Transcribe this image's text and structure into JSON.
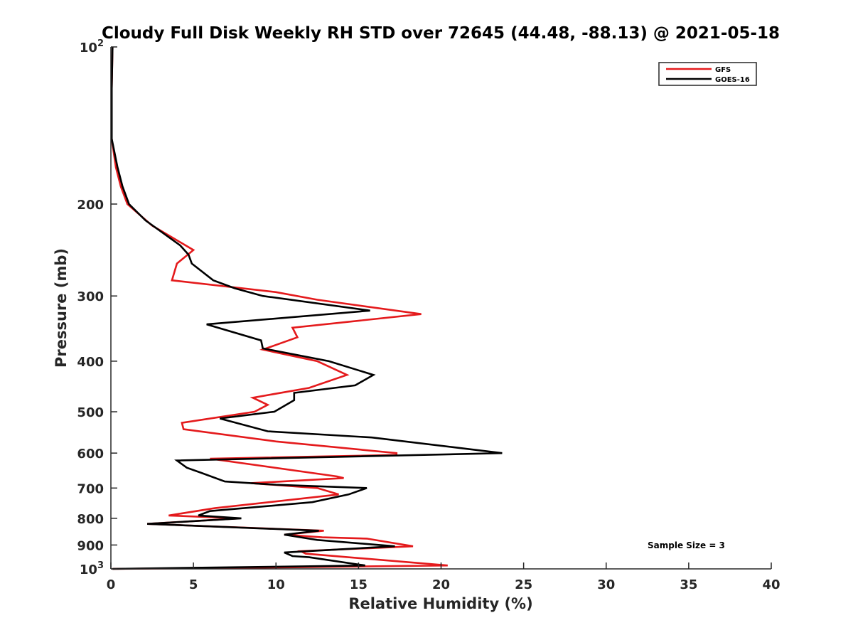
{
  "chart_data": {
    "type": "line",
    "title": "Cloudy Full Disk Weekly RH STD over 72645 (44.48, -88.13) @ 2021-05-18",
    "xlabel": "Relative Humidity (%)",
    "ylabel": "Pressure (mb)",
    "xlim": [
      0,
      40
    ],
    "ylim": [
      100,
      1000
    ],
    "y_scale": "log",
    "y_reversed": true,
    "x_ticks": [
      "0",
      "5",
      "10",
      "15",
      "20",
      "25",
      "30",
      "35",
      "40"
    ],
    "y_ticks": [
      {
        "value": 100,
        "base": "10",
        "exp": "2"
      },
      {
        "value": 200,
        "label": "200"
      },
      {
        "value": 300,
        "label": "300"
      },
      {
        "value": 400,
        "label": "400"
      },
      {
        "value": 500,
        "label": "500"
      },
      {
        "value": 600,
        "label": "600"
      },
      {
        "value": 700,
        "label": "700"
      },
      {
        "value": 800,
        "label": "800"
      },
      {
        "value": 900,
        "label": "900"
      },
      {
        "value": 1000,
        "base": "10",
        "exp": "3"
      }
    ],
    "legend_position": "top-right",
    "grid": false,
    "annotation": "Sample Size = 3",
    "series": [
      {
        "name": "GFS",
        "color": "#e41a1c",
        "points": [
          [
            0.1,
            100
          ],
          [
            0.05,
            120
          ],
          [
            0.05,
            150
          ],
          [
            0.3,
            170
          ],
          [
            0.6,
            185
          ],
          [
            1.0,
            200
          ],
          [
            2.5,
            220
          ],
          [
            5.0,
            245
          ],
          [
            4.0,
            260
          ],
          [
            3.7,
            280
          ],
          [
            10.0,
            295
          ],
          [
            12.5,
            305
          ],
          [
            18.8,
            325
          ],
          [
            11.0,
            345
          ],
          [
            11.3,
            360
          ],
          [
            9.2,
            380
          ],
          [
            12.5,
            400
          ],
          [
            14.3,
            425
          ],
          [
            12.0,
            450
          ],
          [
            8.6,
            470
          ],
          [
            9.5,
            485
          ],
          [
            8.7,
            500
          ],
          [
            4.3,
            525
          ],
          [
            4.4,
            540
          ],
          [
            10.0,
            570
          ],
          [
            17.3,
            600
          ],
          [
            17.3,
            605
          ],
          [
            6.0,
            615
          ],
          [
            13.7,
            665
          ],
          [
            14.1,
            670
          ],
          [
            8.5,
            685
          ],
          [
            12.5,
            700
          ],
          [
            13.8,
            720
          ],
          [
            6.3,
            765
          ],
          [
            3.5,
            790
          ],
          [
            7.8,
            800
          ],
          [
            2.2,
            820
          ],
          [
            12.9,
            845
          ],
          [
            10.5,
            860
          ],
          [
            12.8,
            870
          ],
          [
            15.5,
            875
          ],
          [
            18.3,
            905
          ],
          [
            11.5,
            925
          ],
          [
            11.8,
            935
          ],
          [
            20.4,
            985
          ],
          [
            8.5,
            995
          ],
          [
            0.1,
            1000
          ]
        ]
      },
      {
        "name": "GOES-16",
        "color": "#000000",
        "points": [
          [
            0.1,
            100
          ],
          [
            0.05,
            120
          ],
          [
            0.05,
            150
          ],
          [
            0.4,
            170
          ],
          [
            0.7,
            185
          ],
          [
            1.1,
            200
          ],
          [
            2.1,
            215
          ],
          [
            4.2,
            240
          ],
          [
            4.7,
            250
          ],
          [
            4.9,
            260
          ],
          [
            6.2,
            280
          ],
          [
            7.5,
            290
          ],
          [
            9.2,
            300
          ],
          [
            15.7,
            320
          ],
          [
            5.8,
            340
          ],
          [
            9.1,
            365
          ],
          [
            9.2,
            378
          ],
          [
            13.2,
            400
          ],
          [
            15.9,
            425
          ],
          [
            14.8,
            445
          ],
          [
            11.1,
            460
          ],
          [
            11.1,
            475
          ],
          [
            9.9,
            500
          ],
          [
            6.6,
            515
          ],
          [
            9.5,
            545
          ],
          [
            15.8,
            560
          ],
          [
            20.8,
            585
          ],
          [
            23.7,
            600
          ],
          [
            4.0,
            620
          ],
          [
            4.6,
            640
          ],
          [
            5.5,
            655
          ],
          [
            6.9,
            680
          ],
          [
            10.0,
            690
          ],
          [
            15.5,
            700
          ],
          [
            14.4,
            720
          ],
          [
            12.2,
            745
          ],
          [
            6.0,
            775
          ],
          [
            5.3,
            790
          ],
          [
            7.9,
            800
          ],
          [
            2.2,
            820
          ],
          [
            12.6,
            845
          ],
          [
            10.5,
            860
          ],
          [
            12.5,
            880
          ],
          [
            17.2,
            905
          ],
          [
            10.5,
            930
          ],
          [
            11.0,
            945
          ],
          [
            12.0,
            950
          ],
          [
            15.4,
            985
          ],
          [
            10.5,
            990
          ],
          [
            0.1,
            1000
          ]
        ]
      }
    ]
  }
}
